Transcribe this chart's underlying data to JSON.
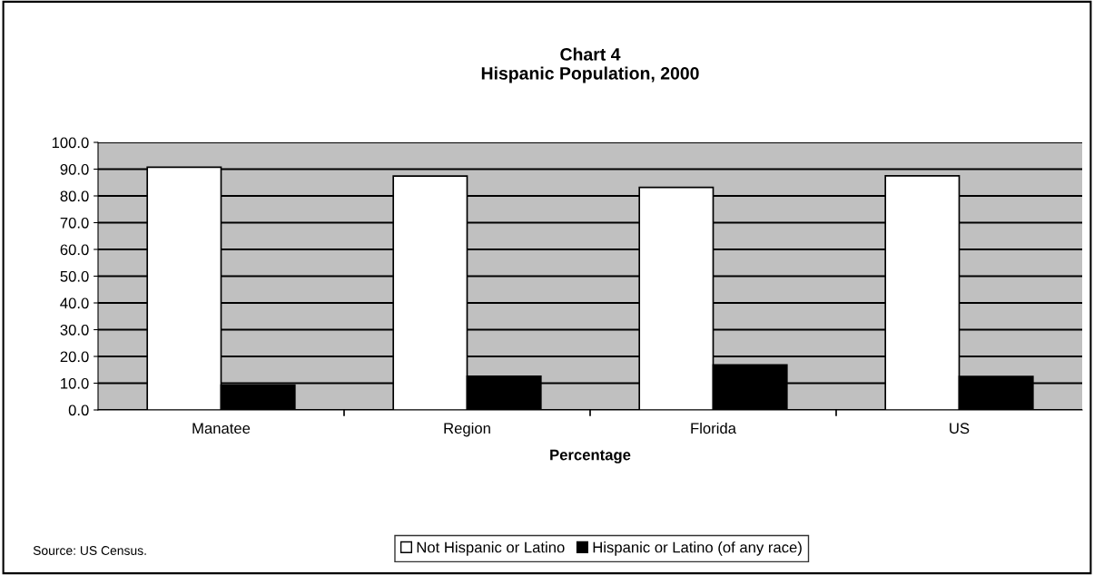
{
  "chart_data": {
    "type": "bar",
    "title": "Chart 4\nHispanic Population, 2000",
    "xlabel": "Percentage",
    "categories": [
      "Manatee",
      "Region",
      "Florida",
      "US"
    ],
    "series": [
      {
        "name": "Not Hispanic or Latino",
        "color": "#ffffff",
        "values": [
          90.7,
          87.4,
          83.2,
          87.5
        ]
      },
      {
        "name": "Hispanic or Latino (of any race)",
        "color": "#000000",
        "values": [
          9.3,
          12.6,
          16.8,
          12.5
        ]
      }
    ],
    "ylim": [
      0,
      100
    ],
    "yticks": [
      {
        "value": 0,
        "label": "0.0"
      },
      {
        "value": 10,
        "label": "10.0"
      },
      {
        "value": 20,
        "label": "20.0"
      },
      {
        "value": 30,
        "label": "30.0"
      },
      {
        "value": 40,
        "label": "40.0"
      },
      {
        "value": 50,
        "label": "50.0"
      },
      {
        "value": 60,
        "label": "60.0"
      },
      {
        "value": 70,
        "label": "70.0"
      },
      {
        "value": 80,
        "label": "80.0"
      },
      {
        "value": 90,
        "label": "90.0"
      },
      {
        "value": 100,
        "label": "100.0"
      }
    ],
    "grid": "y",
    "legend": "bottom",
    "annotations": [
      "Source: US Census."
    ]
  }
}
